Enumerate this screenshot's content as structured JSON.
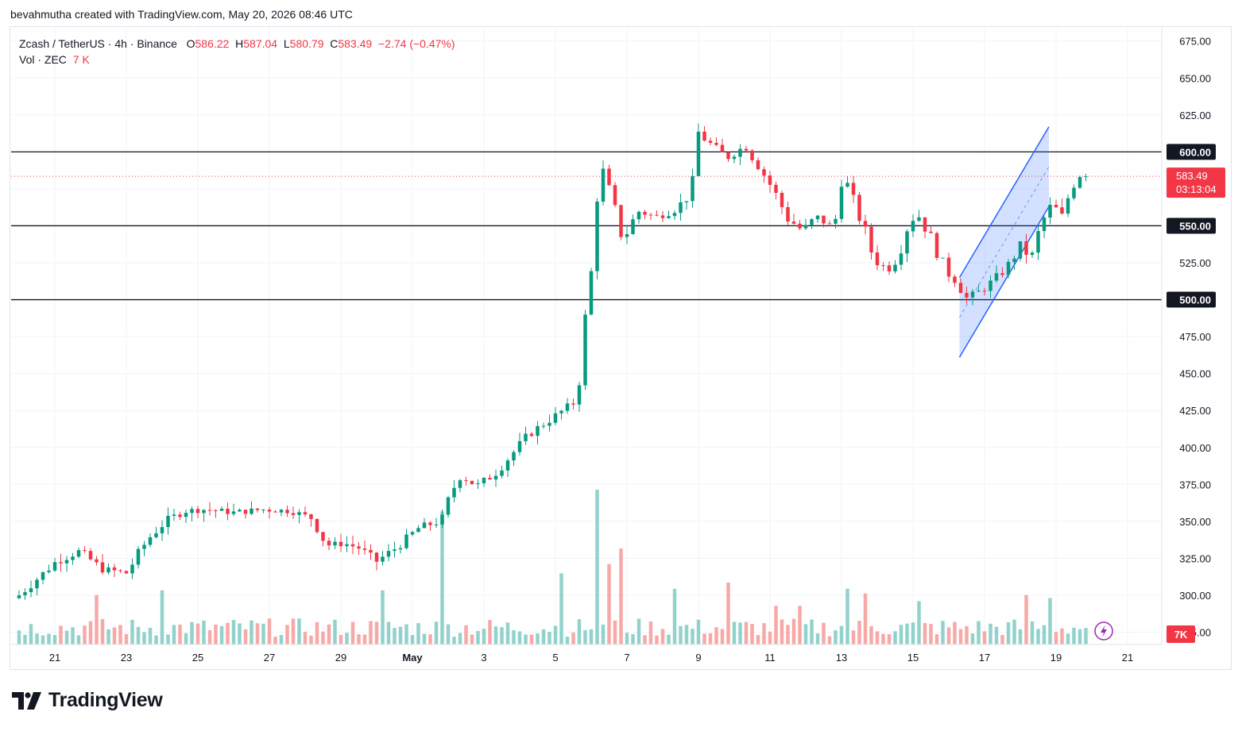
{
  "caption": "bevahmutha created with TradingView.com, May 20, 2026 08:46 UTC",
  "legend": {
    "symbol": "Zcash / TetherUS · 4h · Binance",
    "o_label": "O",
    "o_value": "586.22",
    "h_label": "H",
    "h_value": "587.04",
    "l_label": "L",
    "l_value": "580.79",
    "c_label": "C",
    "c_value": "583.49",
    "change": "−2.74 (−0.47%)",
    "vol_label": "Vol · ZEC",
    "vol_value": "7 K"
  },
  "brand": "TradingView",
  "colors": {
    "up": "#089981",
    "down": "#f23645",
    "vol_up": "#92d2cc",
    "vol_down": "#f7a9a7",
    "channel": "#2962ff",
    "level": "#131722"
  },
  "chart_data": {
    "type": "candlestick",
    "interval": "4h",
    "y_ticks": [
      "675.00",
      "650.00",
      "625.00",
      "600.00",
      "575.00",
      "550.00",
      "525.00",
      "500.00",
      "475.00",
      "450.00",
      "425.00",
      "400.00",
      "375.00",
      "350.00",
      "325.00",
      "300.00",
      "275.00"
    ],
    "y_range": [
      270,
      680
    ],
    "x_ticks": [
      {
        "label": "21",
        "day": 21
      },
      {
        "label": "23",
        "day": 23
      },
      {
        "label": "25",
        "day": 25
      },
      {
        "label": "27",
        "day": 27
      },
      {
        "label": "29",
        "day": 29
      },
      {
        "label": "May",
        "day": 31,
        "bold": true
      },
      {
        "label": "3",
        "day": 33
      },
      {
        "label": "5",
        "day": 35
      },
      {
        "label": "7",
        "day": 37
      },
      {
        "label": "9",
        "day": 39
      },
      {
        "label": "11",
        "day": 41
      },
      {
        "label": "13",
        "day": 43
      },
      {
        "label": "15",
        "day": 45
      },
      {
        "label": "17",
        "day": 47
      },
      {
        "label": "19",
        "day": 49
      },
      {
        "label": "21",
        "day": 51
      }
    ],
    "horizontal_levels": [
      {
        "value": 600,
        "label": "600.00"
      },
      {
        "value": 550,
        "label": "550.00"
      },
      {
        "value": 500,
        "label": "500.00"
      }
    ],
    "last_price": {
      "value": 583.49,
      "label": "583.49",
      "countdown": "03:13:04"
    },
    "volume_badge": "7K",
    "channel": {
      "upper": [
        [
          46.3,
          515
        ],
        [
          48.8,
          617
        ]
      ],
      "lower": [
        [
          46.3,
          461
        ],
        [
          48.8,
          563
        ]
      ]
    },
    "anchors": [
      [
        20.0,
        300
      ],
      [
        21.0,
        322
      ],
      [
        21.7,
        330
      ],
      [
        22.3,
        318
      ],
      [
        23.0,
        315
      ],
      [
        23.6,
        338
      ],
      [
        24.1,
        350
      ],
      [
        24.6,
        357
      ],
      [
        25.2,
        358
      ],
      [
        26.0,
        356
      ],
      [
        26.8,
        358
      ],
      [
        27.6,
        357
      ],
      [
        28.2,
        352
      ],
      [
        28.6,
        334
      ],
      [
        29.1,
        335
      ],
      [
        29.5,
        332
      ],
      [
        30.0,
        323
      ],
      [
        30.6,
        333
      ],
      [
        31.2,
        346
      ],
      [
        31.8,
        350
      ],
      [
        32.3,
        382
      ],
      [
        32.8,
        374
      ],
      [
        33.3,
        382
      ],
      [
        33.8,
        396
      ],
      [
        34.3,
        410
      ],
      [
        34.8,
        418
      ],
      [
        35.5,
        430
      ],
      [
        35.7,
        451
      ],
      [
        35.9,
        500
      ],
      [
        36.05,
        525
      ],
      [
        36.2,
        598
      ],
      [
        36.5,
        573
      ],
      [
        36.9,
        540
      ],
      [
        37.3,
        560
      ],
      [
        37.8,
        556
      ],
      [
        38.3,
        560
      ],
      [
        38.8,
        572
      ],
      [
        39.0,
        612
      ],
      [
        39.4,
        604
      ],
      [
        39.8,
        596
      ],
      [
        40.3,
        604
      ],
      [
        40.7,
        590
      ],
      [
        41.1,
        574
      ],
      [
        41.5,
        555
      ],
      [
        41.9,
        547
      ],
      [
        42.3,
        556
      ],
      [
        42.8,
        548
      ],
      [
        43.0,
        588
      ],
      [
        43.3,
        568
      ],
      [
        43.6,
        550
      ],
      [
        43.9,
        528
      ],
      [
        44.3,
        520
      ],
      [
        44.6,
        530
      ],
      [
        44.8,
        548
      ],
      [
        45.1,
        559
      ],
      [
        45.5,
        542
      ],
      [
        45.9,
        520
      ],
      [
        46.2,
        513
      ],
      [
        46.5,
        501
      ],
      [
        46.9,
        506
      ],
      [
        47.2,
        512
      ],
      [
        47.6,
        521
      ],
      [
        48.0,
        536
      ],
      [
        48.3,
        528
      ],
      [
        48.6,
        552
      ],
      [
        48.9,
        565
      ],
      [
        49.2,
        555
      ],
      [
        49.4,
        576
      ],
      [
        49.7,
        586
      ],
      [
        49.85,
        583.49
      ]
    ],
    "volume_spikes": [
      [
        22.2,
        0.32
      ],
      [
        24.0,
        0.35
      ],
      [
        30.1,
        0.35
      ],
      [
        31.8,
        0.86
      ],
      [
        35.2,
        0.46
      ],
      [
        36.1,
        1.0
      ],
      [
        36.5,
        0.52
      ],
      [
        36.9,
        0.62
      ],
      [
        38.3,
        0.36
      ],
      [
        39.9,
        0.4
      ],
      [
        41.2,
        0.25
      ],
      [
        41.9,
        0.25
      ],
      [
        43.2,
        0.36
      ],
      [
        43.6,
        0.33
      ],
      [
        45.1,
        0.28
      ],
      [
        48.2,
        0.32
      ],
      [
        48.9,
        0.3
      ],
      [
        50.3,
        0.2
      ]
    ],
    "last_volume": "7K"
  }
}
